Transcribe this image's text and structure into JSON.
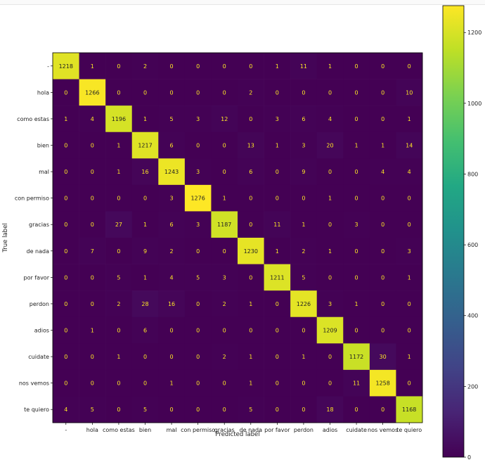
{
  "chart_data": {
    "type": "heatmap",
    "xlabel": "Predicted label",
    "ylabel": "True label",
    "labels": [
      "-",
      "hola",
      "como estas",
      "bien",
      "mal",
      "con permiso",
      "gracias",
      "de nada",
      "por favor",
      "perdon",
      "adios",
      "cuidate",
      "nos vemos",
      "te quiero"
    ],
    "matrix": [
      [
        1218,
        1,
        0,
        2,
        0,
        0,
        0,
        0,
        1,
        11,
        1,
        0,
        0,
        0
      ],
      [
        0,
        1266,
        0,
        0,
        0,
        0,
        0,
        2,
        0,
        0,
        0,
        0,
        0,
        10
      ],
      [
        1,
        4,
        1196,
        1,
        5,
        3,
        12,
        0,
        3,
        6,
        4,
        0,
        0,
        1
      ],
      [
        0,
        0,
        1,
        1217,
        6,
        0,
        0,
        13,
        1,
        3,
        20,
        1,
        1,
        14
      ],
      [
        0,
        0,
        1,
        16,
        1243,
        3,
        0,
        6,
        0,
        9,
        0,
        0,
        4,
        4
      ],
      [
        0,
        0,
        0,
        0,
        3,
        1276,
        1,
        0,
        0,
        0,
        1,
        0,
        0,
        0
      ],
      [
        0,
        0,
        27,
        1,
        6,
        3,
        1187,
        0,
        11,
        1,
        0,
        3,
        0,
        0
      ],
      [
        0,
        7,
        0,
        9,
        2,
        0,
        0,
        1230,
        1,
        2,
        1,
        0,
        0,
        3
      ],
      [
        0,
        0,
        5,
        1,
        4,
        5,
        3,
        0,
        1211,
        5,
        0,
        0,
        0,
        1
      ],
      [
        0,
        0,
        2,
        28,
        16,
        0,
        2,
        1,
        0,
        1226,
        3,
        1,
        0,
        0
      ],
      [
        0,
        1,
        0,
        6,
        0,
        0,
        0,
        0,
        0,
        0,
        1209,
        0,
        0,
        0
      ],
      [
        0,
        0,
        1,
        0,
        0,
        0,
        2,
        1,
        0,
        1,
        0,
        1172,
        30,
        1
      ],
      [
        0,
        0,
        0,
        0,
        1,
        0,
        0,
        1,
        0,
        0,
        0,
        11,
        1258,
        0
      ],
      [
        4,
        5,
        0,
        5,
        0,
        0,
        0,
        5,
        0,
        0,
        18,
        0,
        0,
        1168
      ]
    ],
    "colorbar": {
      "ticks": [
        0,
        200,
        400,
        600,
        800,
        1000,
        1200
      ],
      "tick_labels": [
        "0",
        "200",
        "400",
        "600",
        "800",
        "1000",
        "1200"
      ],
      "range": [
        0,
        1276
      ]
    }
  }
}
